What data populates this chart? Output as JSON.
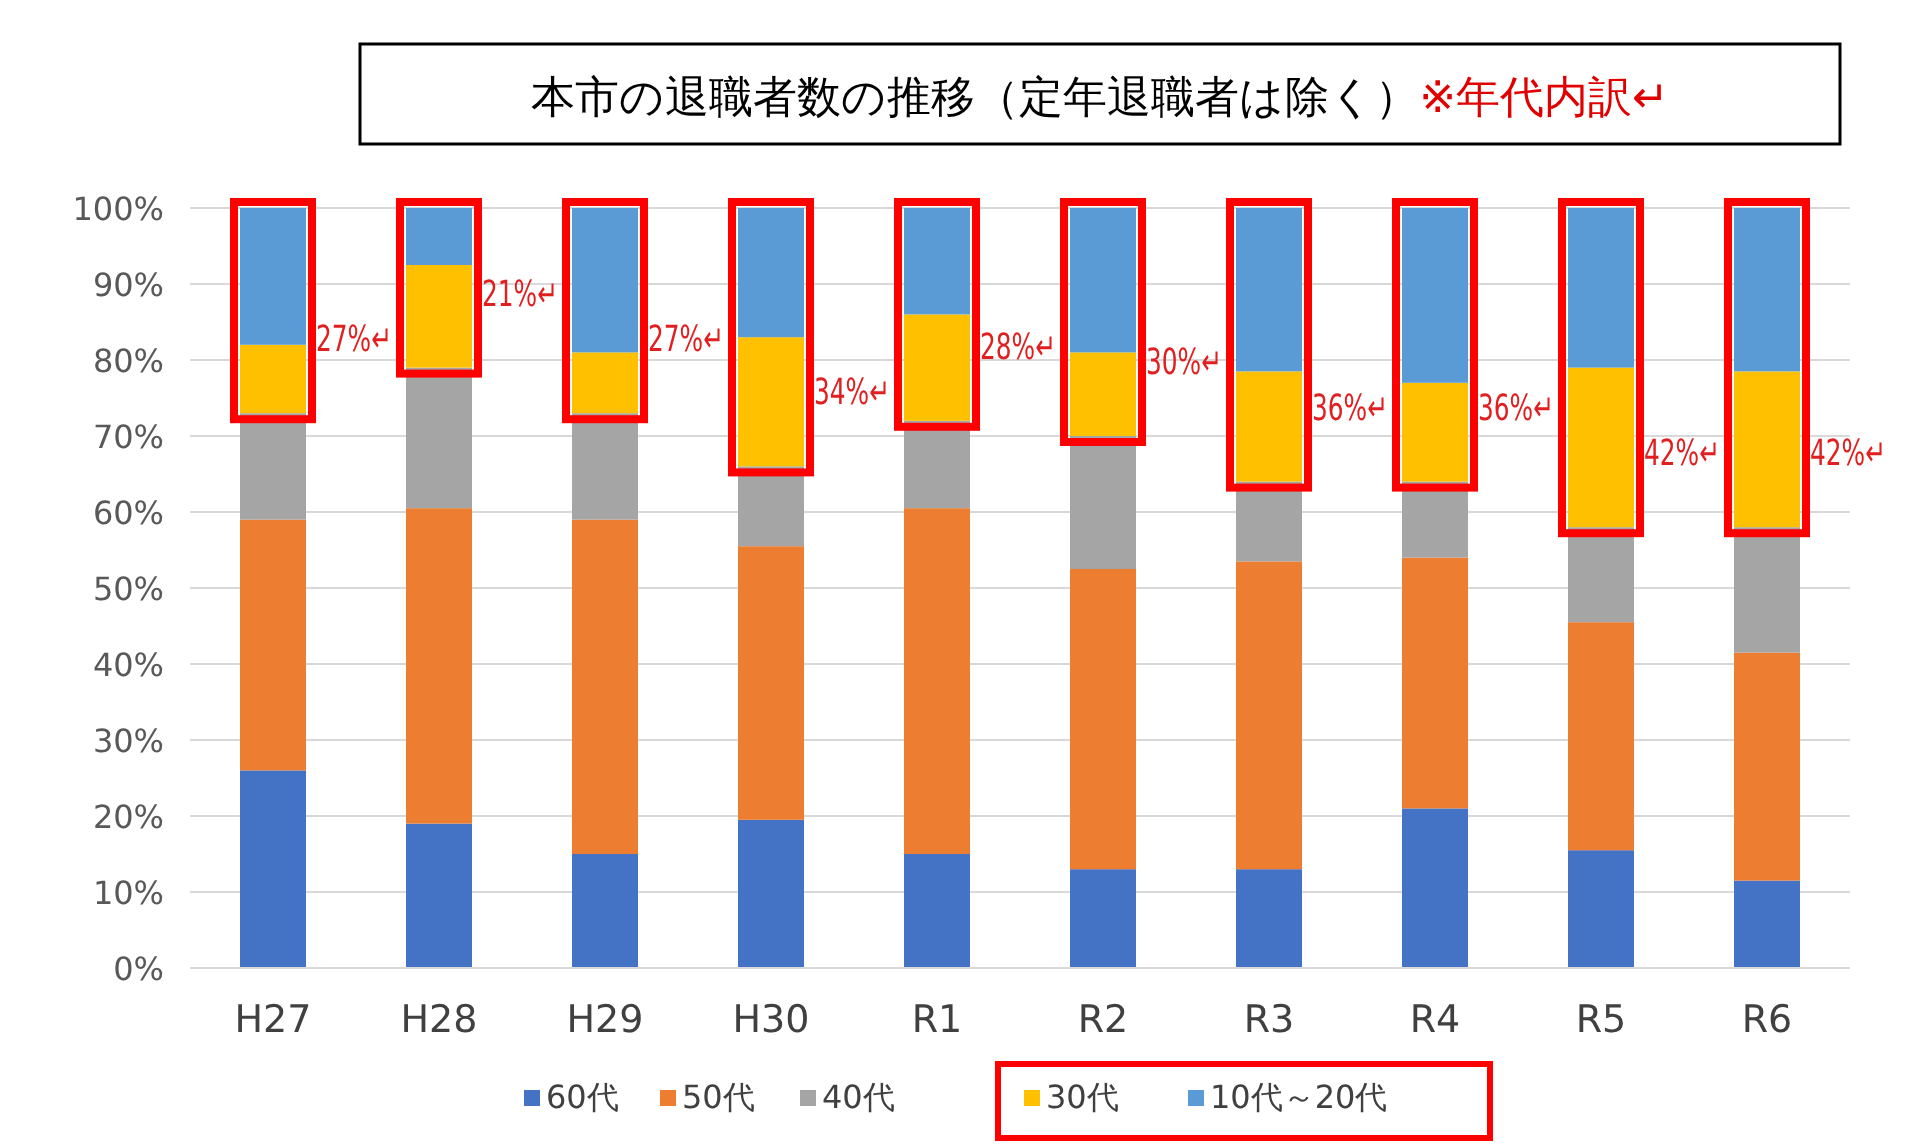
{
  "chart_data": {
    "type": "bar",
    "stacked": true,
    "title": "本市の退職者数の推移（定年退職者は除く）",
    "subtitle": "※年代内訳↵",
    "categories": [
      "H27",
      "H28",
      "H29",
      "H30",
      "R1",
      "R2",
      "R3",
      "R4",
      "R5",
      "R6"
    ],
    "series": [
      {
        "name": "60代",
        "color": "#4472c4",
        "values": [
          26,
          19,
          15,
          19.5,
          15,
          13,
          13,
          21,
          15.5,
          11.5
        ]
      },
      {
        "name": "50代",
        "color": "#ed7d31",
        "values": [
          33,
          41.5,
          44,
          36,
          45.5,
          39.5,
          40.5,
          33,
          30,
          30
        ]
      },
      {
        "name": "40代",
        "color": "#a5a5a5",
        "values": [
          14,
          18.5,
          14,
          10.5,
          11.5,
          17.5,
          10.5,
          10,
          12.5,
          16.5
        ]
      },
      {
        "name": "30代",
        "color": "#ffc000",
        "values": [
          9,
          13.5,
          8,
          17,
          14,
          11,
          14.5,
          13,
          21,
          20.5
        ]
      },
      {
        "name": "10代～20代",
        "color": "#5b9bd5",
        "values": [
          18,
          7.5,
          19,
          17,
          14,
          19,
          21.5,
          23,
          21,
          21.5
        ]
      }
    ],
    "ylim": [
      0,
      100
    ],
    "yticks": [
      {
        "value": 0,
        "label": "0%"
      },
      {
        "value": 10,
        "label": "10%"
      },
      {
        "value": 20,
        "label": "20%"
      },
      {
        "value": 30,
        "label": "30%"
      },
      {
        "value": 40,
        "label": "40%"
      },
      {
        "value": 50,
        "label": "50%"
      },
      {
        "value": 60,
        "label": "60%"
      },
      {
        "value": 70,
        "label": "70%"
      },
      {
        "value": 80,
        "label": "80%"
      },
      {
        "value": 90,
        "label": "90%"
      },
      {
        "value": 100,
        "label": "100%"
      }
    ],
    "grid": "y",
    "legend": "bottom",
    "annotations": [
      "27%↵",
      "21%↵",
      "27%↵",
      "34%↵",
      "28%↵",
      "30%↵",
      "36%↵",
      "36%↵",
      "42%↵",
      "42%↵"
    ]
  }
}
